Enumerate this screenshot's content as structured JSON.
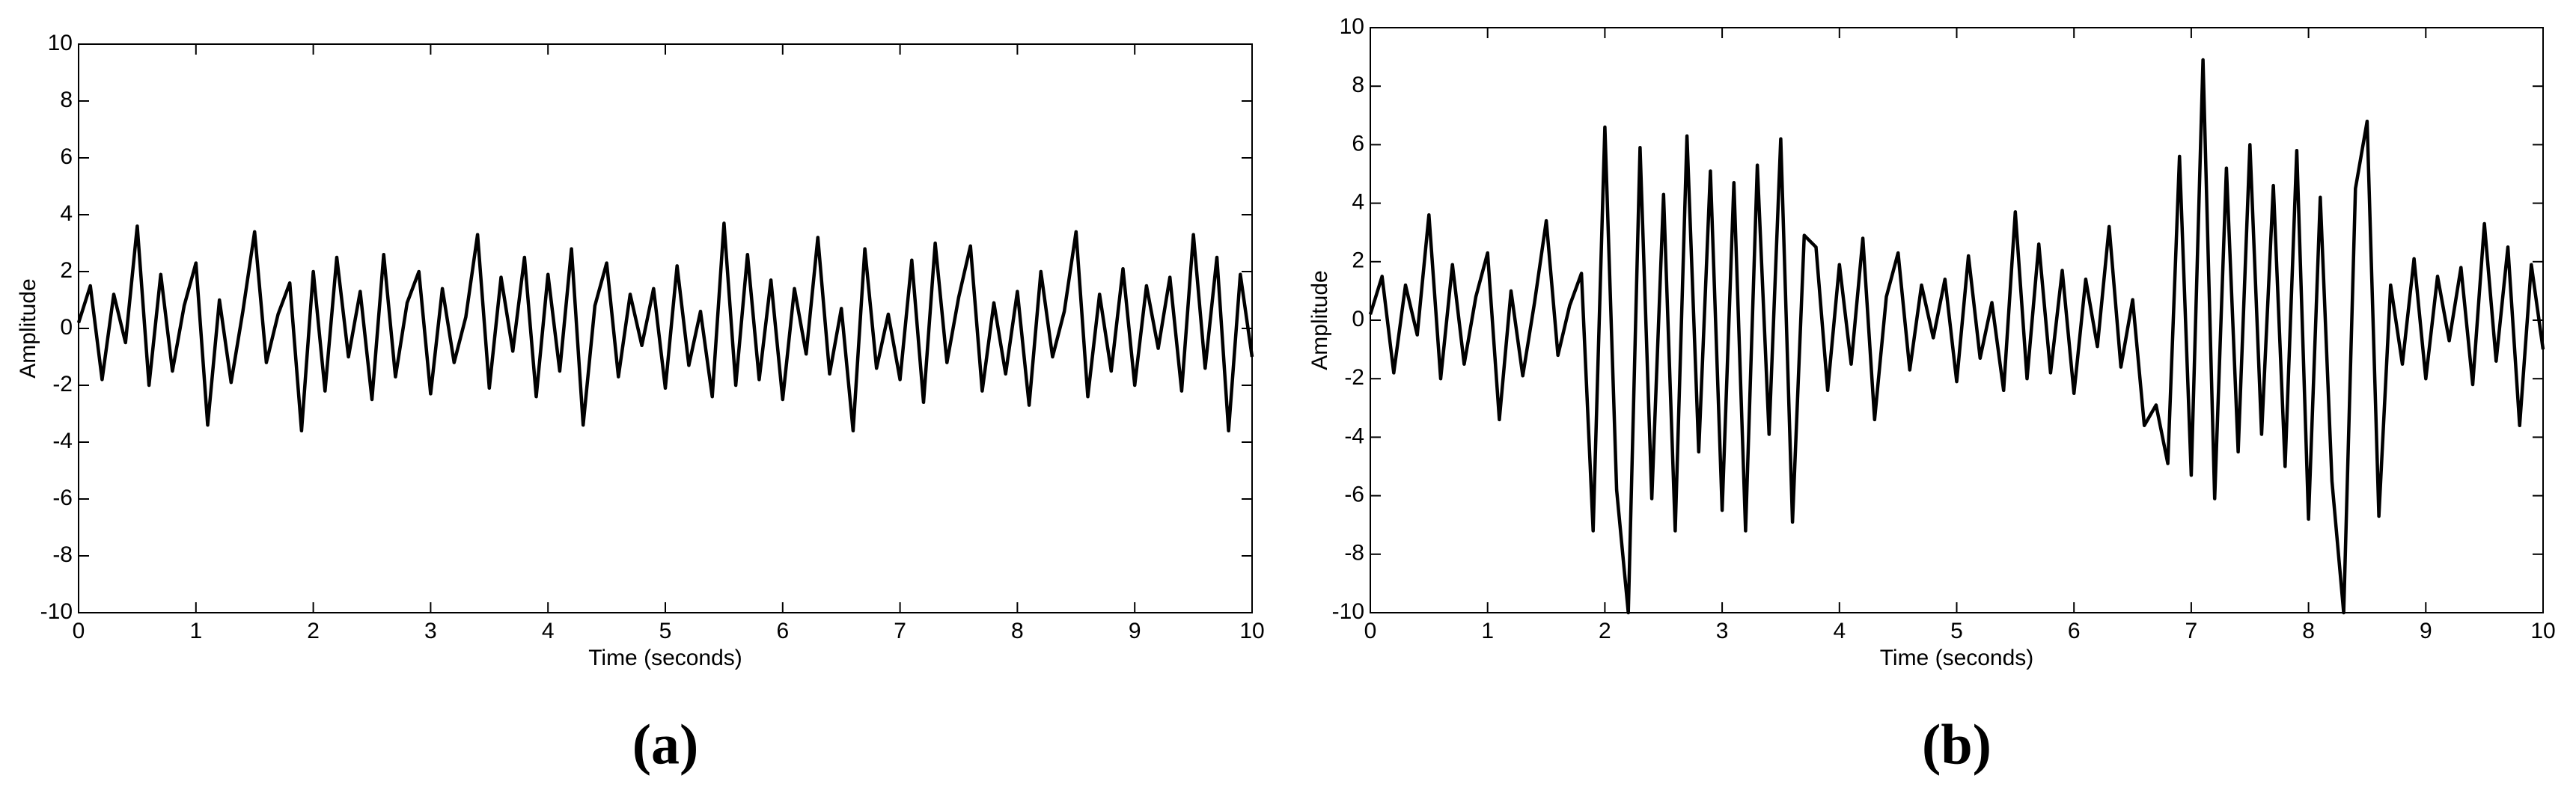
{
  "chart_data": [
    {
      "type": "line",
      "caption": "(a)",
      "xlabel": "Time (seconds)",
      "ylabel": "Amplitude",
      "color": "#000000",
      "x": [
        0,
        0.1,
        0.2,
        0.3,
        0.4,
        0.5,
        0.6,
        0.7,
        0.8,
        0.9,
        1,
        1.1,
        1.2,
        1.3,
        1.4,
        1.5,
        1.6,
        1.7,
        1.8,
        1.9,
        2,
        2.1,
        2.2,
        2.3,
        2.4,
        2.5,
        2.6,
        2.7,
        2.8,
        2.9,
        3,
        3.1,
        3.2,
        3.3,
        3.4,
        3.5,
        3.6,
        3.7,
        3.8,
        3.9,
        4,
        4.1,
        4.2,
        4.3,
        4.4,
        4.5,
        4.6,
        4.7,
        4.8,
        4.9,
        5,
        5.1,
        5.2,
        5.3,
        5.4,
        5.5,
        5.6,
        5.7,
        5.8,
        5.9,
        6,
        6.1,
        6.2,
        6.3,
        6.4,
        6.5,
        6.6,
        6.7,
        6.8,
        6.9,
        7,
        7.1,
        7.2,
        7.3,
        7.4,
        7.5,
        7.6,
        7.7,
        7.8,
        7.9,
        8,
        8.1,
        8.2,
        8.3,
        8.4,
        8.5,
        8.6,
        8.7,
        8.8,
        8.9,
        9,
        9.1,
        9.2,
        9.3,
        9.4,
        9.5,
        9.6,
        9.7,
        9.8,
        9.9,
        10
      ],
      "values": [
        0.2,
        1.5,
        -1.8,
        1.2,
        -0.5,
        3.6,
        -2.0,
        1.9,
        -1.5,
        0.8,
        2.3,
        -3.4,
        1.0,
        -1.9,
        0.6,
        3.4,
        -1.2,
        0.5,
        1.6,
        -3.6,
        2.0,
        -2.2,
        2.5,
        -1.0,
        1.3,
        -2.5,
        2.6,
        -1.7,
        0.9,
        2.0,
        -2.3,
        1.4,
        -1.2,
        0.4,
        3.3,
        -2.1,
        1.8,
        -0.8,
        2.5,
        -2.4,
        1.9,
        -1.5,
        2.8,
        -3.4,
        0.8,
        2.3,
        -1.7,
        1.2,
        -0.6,
        1.4,
        -2.1,
        2.2,
        -1.3,
        0.6,
        -2.4,
        3.7,
        -2.0,
        2.6,
        -1.8,
        1.7,
        -2.5,
        1.4,
        -0.9,
        3.2,
        -1.6,
        0.7,
        -3.6,
        2.8,
        -1.4,
        0.5,
        -1.8,
        2.4,
        -2.6,
        3.0,
        -1.2,
        1.1,
        2.9,
        -2.2,
        0.9,
        -1.6,
        1.3,
        -2.7,
        2.0,
        -1.0,
        0.6,
        3.4,
        -2.4,
        1.2,
        -1.5,
        2.1,
        -2.0,
        1.5,
        -0.7,
        1.8,
        -2.2,
        3.3,
        -1.4,
        2.5,
        -3.6,
        1.9,
        -1.0
      ],
      "xlim": [
        0,
        10
      ],
      "xticks": [
        0,
        1,
        2,
        3,
        4,
        5,
        6,
        7,
        8,
        9,
        10
      ],
      "ylim": [
        -10,
        10
      ],
      "yticks": [
        -10,
        -8,
        -6,
        -4,
        -2,
        0,
        2,
        4,
        6,
        8,
        10
      ]
    },
    {
      "type": "line",
      "caption": "(b)",
      "xlabel": "Time (seconds)",
      "ylabel": "Amplitude",
      "color": "#000000",
      "x": [
        0,
        0.1,
        0.2,
        0.3,
        0.4,
        0.5,
        0.6,
        0.7,
        0.8,
        0.9,
        1,
        1.1,
        1.2,
        1.3,
        1.4,
        1.5,
        1.6,
        1.7,
        1.8,
        1.9,
        2,
        2.1,
        2.2,
        2.3,
        2.4,
        2.5,
        2.6,
        2.7,
        2.8,
        2.9,
        3,
        3.1,
        3.2,
        3.3,
        3.4,
        3.5,
        3.6,
        3.7,
        3.8,
        3.9,
        4,
        4.1,
        4.2,
        4.3,
        4.4,
        4.5,
        4.6,
        4.7,
        4.8,
        4.9,
        5,
        5.1,
        5.2,
        5.3,
        5.4,
        5.5,
        5.6,
        5.7,
        5.8,
        5.9,
        6,
        6.1,
        6.2,
        6.3,
        6.4,
        6.5,
        6.6,
        6.7,
        6.8,
        6.9,
        7,
        7.1,
        7.2,
        7.3,
        7.4,
        7.5,
        7.6,
        7.7,
        7.8,
        7.9,
        8,
        8.1,
        8.2,
        8.3,
        8.4,
        8.5,
        8.6,
        8.7,
        8.8,
        8.9,
        9,
        9.1,
        9.2,
        9.3,
        9.4,
        9.5,
        9.6,
        9.7,
        9.8,
        9.9,
        10
      ],
      "values": [
        0.2,
        1.5,
        -1.8,
        1.2,
        -0.5,
        3.6,
        -2.0,
        1.9,
        -1.5,
        0.8,
        2.3,
        -3.4,
        1.0,
        -1.9,
        0.6,
        3.4,
        -1.2,
        0.5,
        1.6,
        -7.2,
        6.6,
        -5.8,
        -10,
        5.9,
        -6.1,
        4.3,
        -7.2,
        6.3,
        -4.5,
        5.1,
        -6.5,
        4.7,
        -7.2,
        5.3,
        -3.9,
        6.2,
        -6.9,
        2.9,
        2.5,
        -2.4,
        1.9,
        -1.5,
        2.8,
        -3.4,
        0.8,
        2.3,
        -1.7,
        1.2,
        -0.6,
        1.4,
        -2.1,
        2.2,
        -1.3,
        0.6,
        -2.4,
        3.7,
        -2.0,
        2.6,
        -1.8,
        1.7,
        -2.5,
        1.4,
        -0.9,
        3.2,
        -1.6,
        0.7,
        -3.6,
        -2.9,
        -4.9,
        5.6,
        -5.3,
        8.9,
        -6.1,
        5.2,
        -4.5,
        6.0,
        -3.9,
        4.6,
        -5.0,
        5.8,
        -6.8,
        4.2,
        -5.5,
        -10,
        4.5,
        6.8,
        -6.7,
        1.2,
        -1.5,
        2.1,
        -2.0,
        1.5,
        -0.7,
        1.8,
        -2.2,
        3.3,
        -1.4,
        2.5,
        -3.6,
        1.9,
        -1.0
      ],
      "xlim": [
        0,
        10
      ],
      "xticks": [
        0,
        1,
        2,
        3,
        4,
        5,
        6,
        7,
        8,
        9,
        10
      ],
      "ylim": [
        -10,
        10
      ],
      "yticks": [
        -10,
        -8,
        -6,
        -4,
        -2,
        0,
        2,
        4,
        6,
        8,
        10
      ]
    }
  ]
}
